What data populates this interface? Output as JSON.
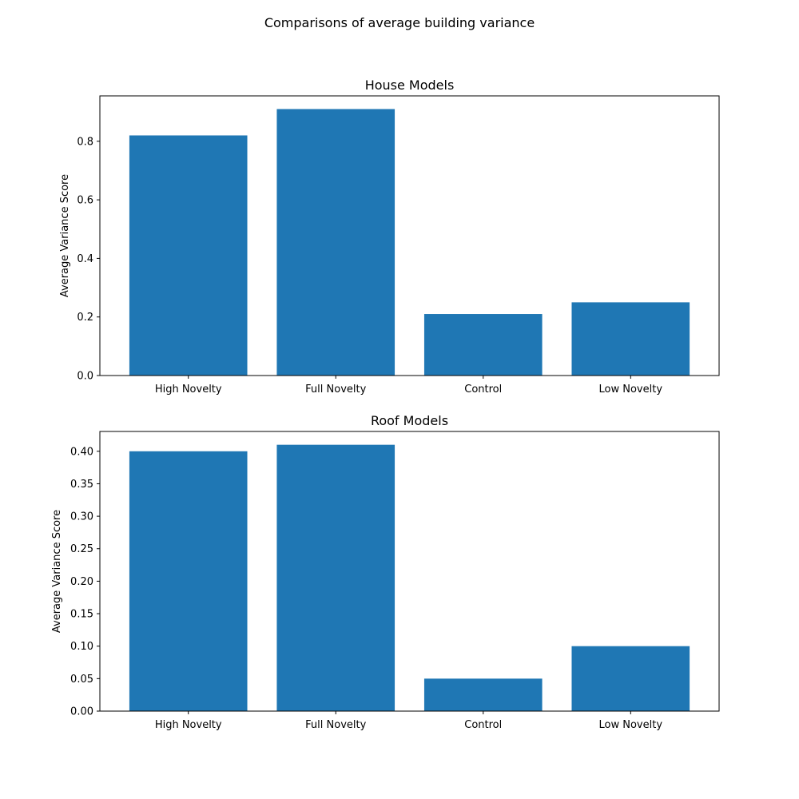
{
  "figure": {
    "title": "Comparisons of average building variance"
  },
  "chart_data": [
    {
      "type": "bar",
      "title": "House Models",
      "xlabel": "",
      "ylabel": "Average Variance Score",
      "categories": [
        "High Novelty",
        "Full Novelty",
        "Control",
        "Low Novelty"
      ],
      "values": [
        0.82,
        0.91,
        0.21,
        0.25
      ],
      "ylim": [
        0,
        0.955
      ],
      "yticks": [
        0.0,
        0.2,
        0.4,
        0.6,
        0.8
      ],
      "ytick_labels": [
        "0.0",
        "0.2",
        "0.4",
        "0.6",
        "0.8"
      ],
      "bar_color": "#1f77b4",
      "grid": false
    },
    {
      "type": "bar",
      "title": "Roof Models",
      "xlabel": "",
      "ylabel": "Average Variance Score",
      "categories": [
        "High Novelty",
        "Full Novelty",
        "Control",
        "Low Novelty"
      ],
      "values": [
        0.4,
        0.41,
        0.05,
        0.1
      ],
      "ylim": [
        0,
        0.4305
      ],
      "yticks": [
        0.0,
        0.05,
        0.1,
        0.15,
        0.2,
        0.25,
        0.3,
        0.35,
        0.4
      ],
      "ytick_labels": [
        "0.00",
        "0.05",
        "0.10",
        "0.15",
        "0.20",
        "0.25",
        "0.30",
        "0.35",
        "0.40"
      ],
      "bar_color": "#1f77b4",
      "grid": false
    }
  ]
}
